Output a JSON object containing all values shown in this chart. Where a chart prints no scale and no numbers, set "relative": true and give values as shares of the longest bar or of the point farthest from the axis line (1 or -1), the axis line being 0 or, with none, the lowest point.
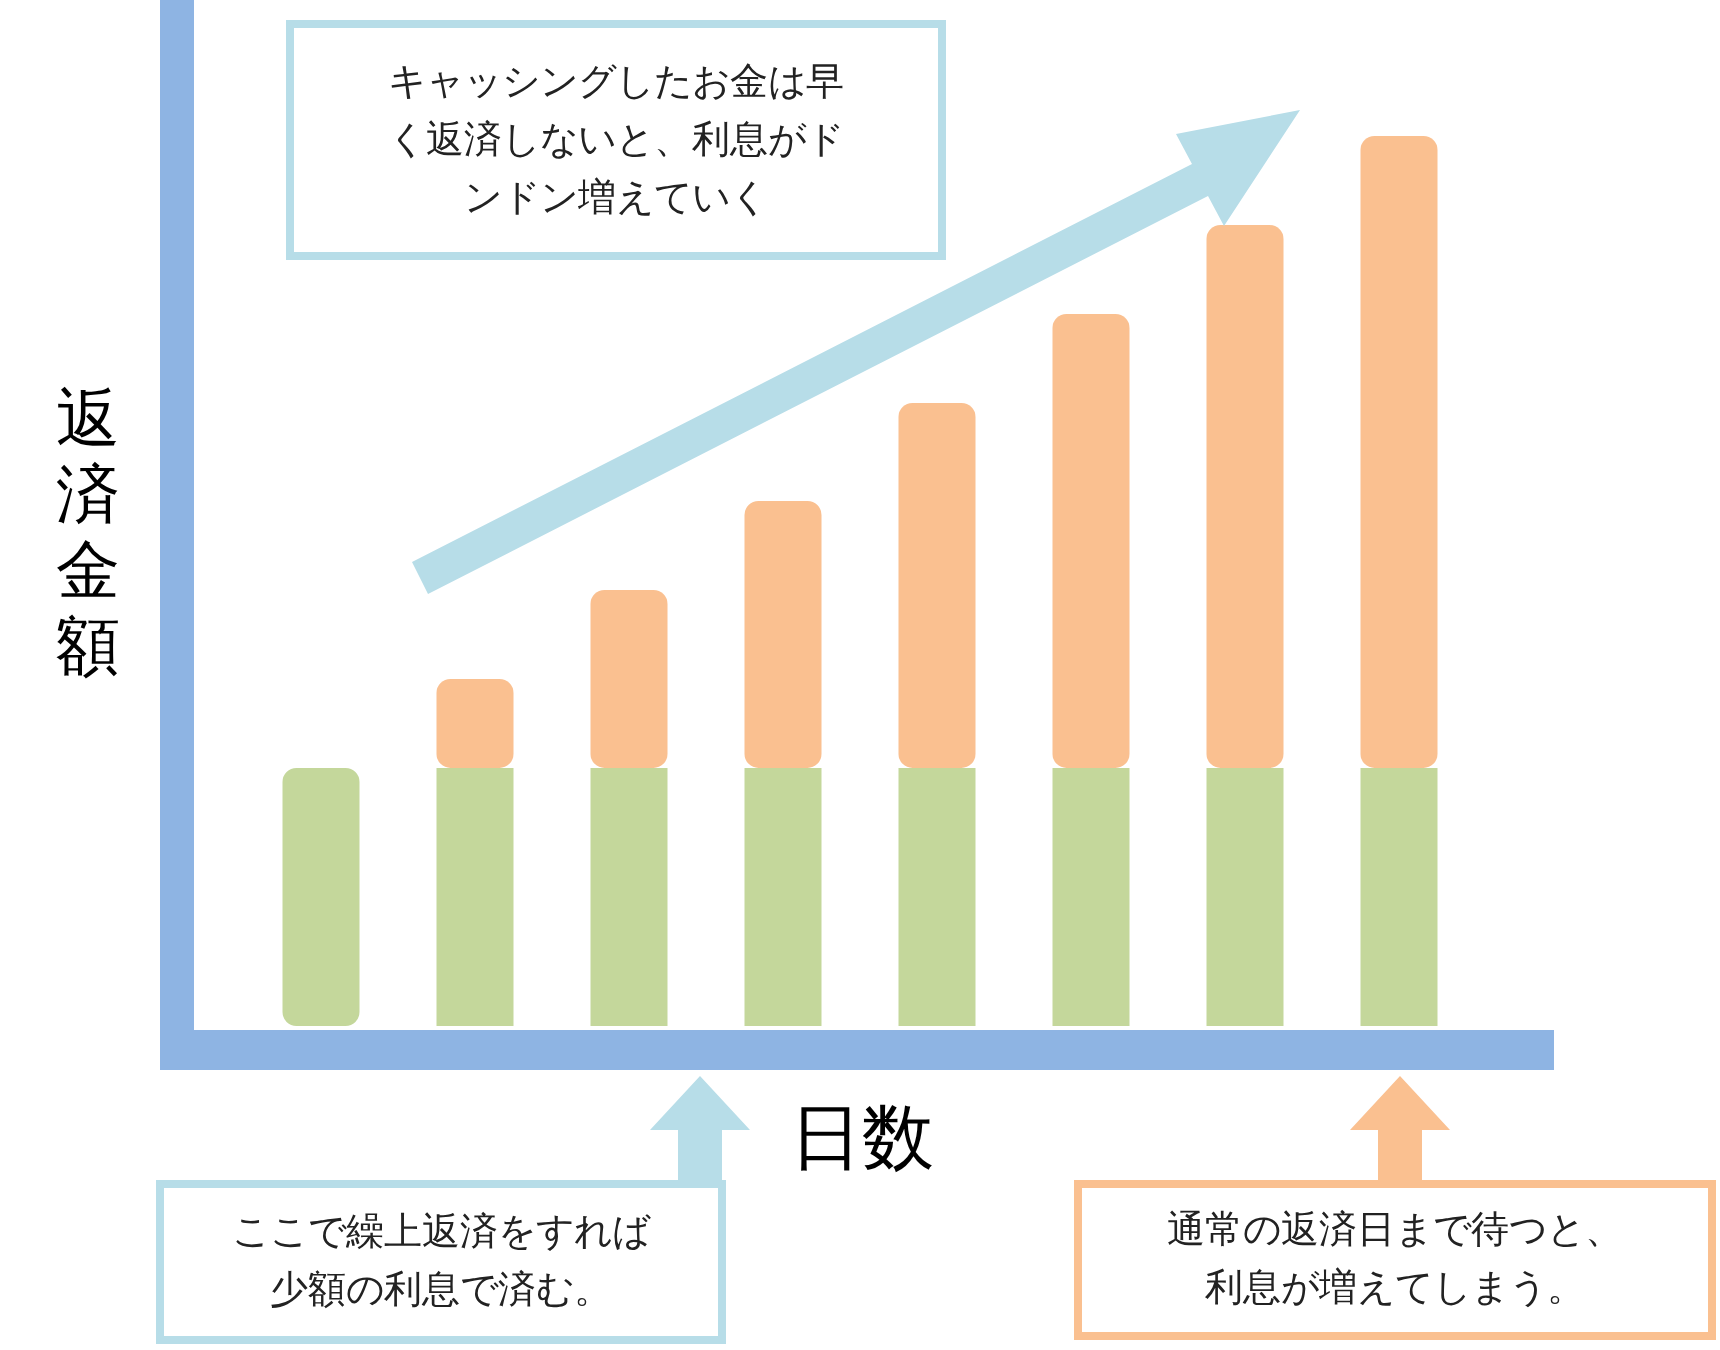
{
  "chart_data": {
    "type": "bar",
    "stacked": true,
    "relative": true,
    "ylabel": "返済金額",
    "xlabel": "日数",
    "categories": [
      null,
      null,
      null,
      null,
      null,
      null,
      null,
      null
    ],
    "series": [
      {
        "color": "#c4d79b",
        "values": [
          0.29,
          0.29,
          0.29,
          0.29,
          0.29,
          0.29,
          0.29,
          0.29
        ]
      },
      {
        "color": "#fac090",
        "values": [
          null,
          0.1,
          0.2,
          0.3,
          0.41,
          0.51,
          0.61,
          0.71
        ]
      }
    ],
    "annotations": [
      "キャッシングしたお金は早く返済しないと、利息がドンドン増えていく",
      "ここで繰上返済をすれば少額の利息で済む。",
      "通常の返済日まで待つと、利息が増えてしまう。"
    ]
  }
}
